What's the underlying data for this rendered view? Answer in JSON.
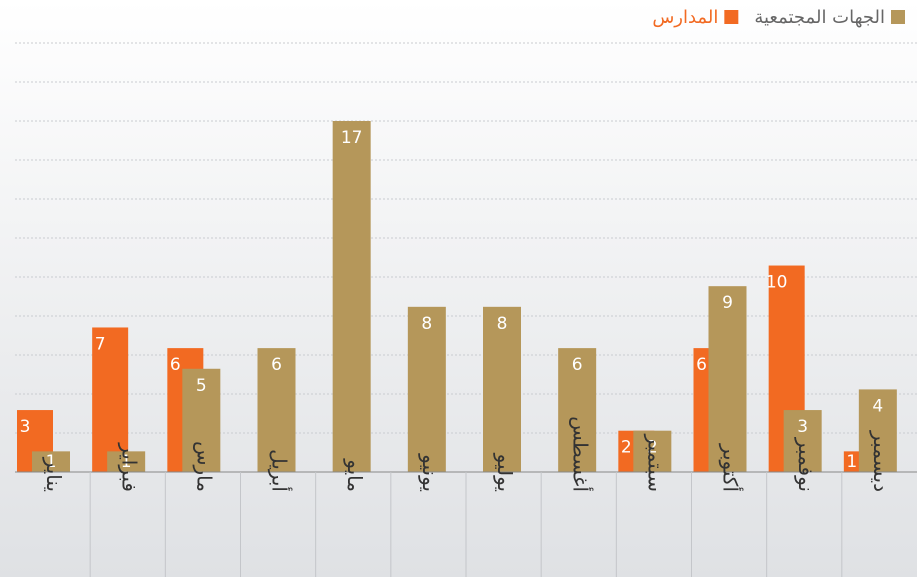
{
  "chart_data": {
    "type": "bar",
    "categories": [
      "يناير",
      "فبراير",
      "مارس",
      "أبريل",
      "مايو",
      "يونيو",
      "يوليو",
      "أغسطس",
      "سبتمبر",
      "أكتوبر",
      "نوفمبر",
      "ديسمبر"
    ],
    "series": [
      {
        "name": "المدارس",
        "color": "#f26a22",
        "values": [
          3,
          7,
          6,
          null,
          null,
          null,
          null,
          null,
          2,
          6,
          10,
          1
        ]
      },
      {
        "name": "الجهات المجتمعية",
        "color": "#b5975a",
        "values": [
          1,
          1,
          5,
          6,
          17,
          8,
          8,
          6,
          2,
          9,
          3,
          4
        ]
      }
    ],
    "ylim": [
      0,
      17
    ],
    "legend": "top-right"
  }
}
